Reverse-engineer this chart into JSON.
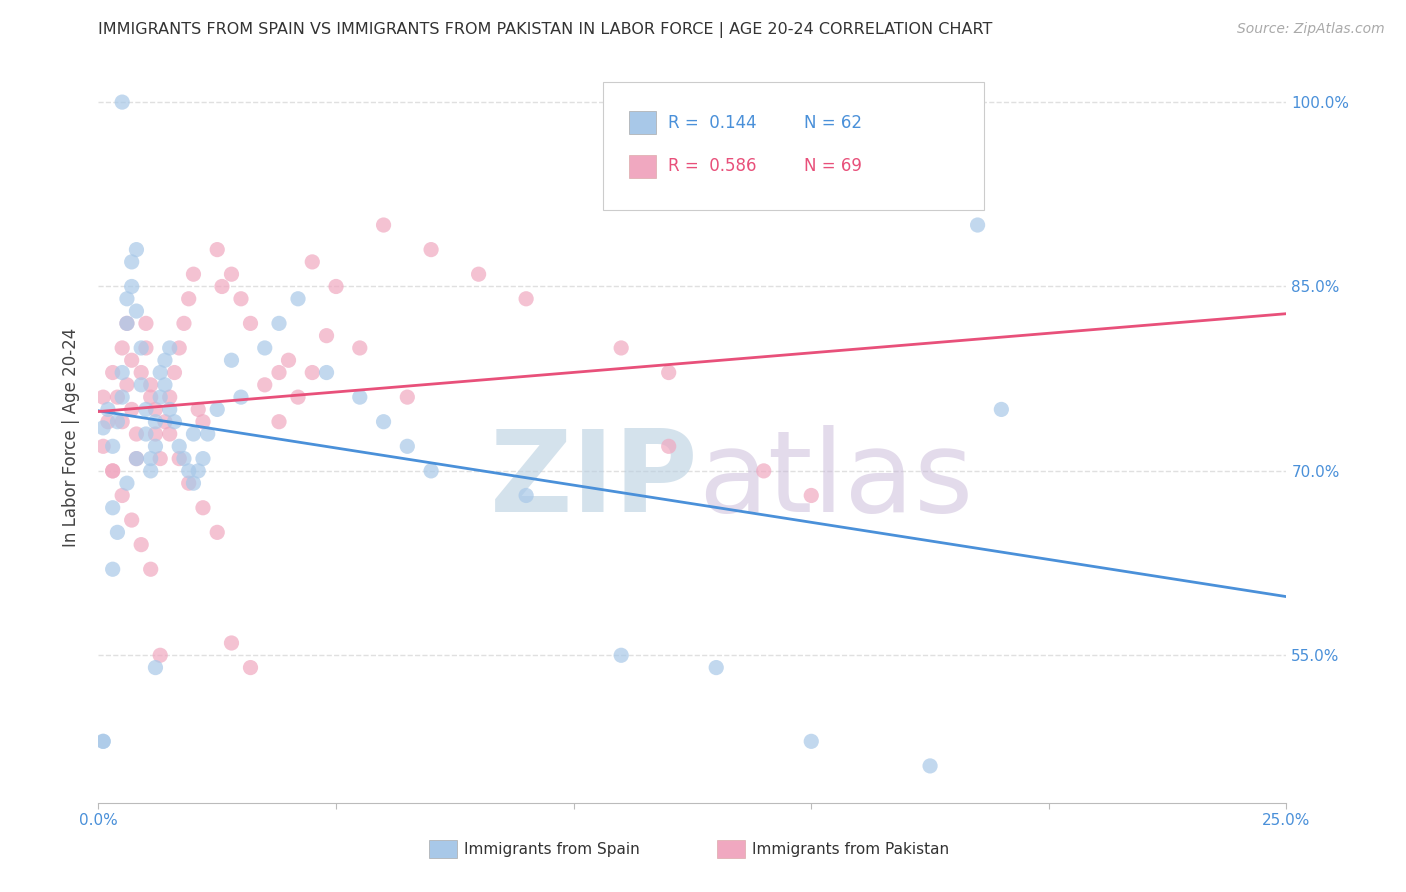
{
  "title": "IMMIGRANTS FROM SPAIN VS IMMIGRANTS FROM PAKISTAN IN LABOR FORCE | AGE 20-24 CORRELATION CHART",
  "source": "Source: ZipAtlas.com",
  "ylabel": "In Labor Force | Age 20-24",
  "x_min": 0.0,
  "x_max": 0.25,
  "y_min": 0.43,
  "y_max": 1.025,
  "y_ticks": [
    0.55,
    0.7,
    0.85,
    1.0
  ],
  "y_tick_labels": [
    "55.0%",
    "70.0%",
    "85.0%",
    "100.0%"
  ],
  "x_ticks": [
    0.0,
    0.05,
    0.1,
    0.15,
    0.2,
    0.25
  ],
  "x_tick_labels": [
    "0.0%",
    "",
    "",
    "",
    "",
    "25.0%"
  ],
  "legend_spain": "Immigrants from Spain",
  "legend_pakistan": "Immigrants from Pakistan",
  "r_spain": "0.144",
  "n_spain": "62",
  "r_pakistan": "0.586",
  "n_pakistan": "69",
  "color_spain": "#a8c8e8",
  "color_pakistan": "#f0a8c0",
  "line_color_spain": "#4a90d9",
  "line_color_pakistan": "#e8507a",
  "background_color": "#ffffff",
  "grid_color": "#e0e0e0",
  "spain_x": [
    0.001,
    0.001,
    0.002,
    0.003,
    0.003,
    0.004,
    0.004,
    0.005,
    0.005,
    0.005,
    0.006,
    0.006,
    0.007,
    0.007,
    0.008,
    0.008,
    0.009,
    0.009,
    0.01,
    0.01,
    0.011,
    0.011,
    0.012,
    0.012,
    0.013,
    0.013,
    0.014,
    0.014,
    0.015,
    0.015,
    0.016,
    0.017,
    0.018,
    0.019,
    0.02,
    0.021,
    0.022,
    0.025,
    0.028,
    0.03,
    0.035,
    0.042,
    0.048,
    0.055,
    0.06,
    0.065,
    0.07,
    0.09,
    0.11,
    0.13,
    0.15,
    0.175,
    0.19,
    0.001,
    0.003,
    0.006,
    0.008,
    0.012,
    0.038,
    0.185,
    0.02,
    0.023
  ],
  "spain_y": [
    0.735,
    0.48,
    0.75,
    0.72,
    0.62,
    0.74,
    0.65,
    0.78,
    0.76,
    1.0,
    0.82,
    0.84,
    0.85,
    0.87,
    0.88,
    0.83,
    0.8,
    0.77,
    0.75,
    0.73,
    0.71,
    0.7,
    0.72,
    0.74,
    0.76,
    0.78,
    0.77,
    0.79,
    0.8,
    0.75,
    0.74,
    0.72,
    0.71,
    0.7,
    0.69,
    0.7,
    0.71,
    0.75,
    0.79,
    0.76,
    0.8,
    0.84,
    0.78,
    0.76,
    0.74,
    0.72,
    0.7,
    0.68,
    0.55,
    0.54,
    0.48,
    0.46,
    0.75,
    0.48,
    0.67,
    0.69,
    0.71,
    0.54,
    0.82,
    0.9,
    0.73,
    0.73
  ],
  "pakistan_x": [
    0.001,
    0.001,
    0.002,
    0.003,
    0.003,
    0.004,
    0.005,
    0.005,
    0.006,
    0.006,
    0.007,
    0.007,
    0.008,
    0.008,
    0.009,
    0.01,
    0.01,
    0.011,
    0.011,
    0.012,
    0.012,
    0.013,
    0.014,
    0.015,
    0.016,
    0.017,
    0.018,
    0.019,
    0.02,
    0.021,
    0.022,
    0.025,
    0.026,
    0.028,
    0.03,
    0.032,
    0.038,
    0.042,
    0.045,
    0.05,
    0.06,
    0.07,
    0.08,
    0.09,
    0.11,
    0.12,
    0.003,
    0.005,
    0.007,
    0.009,
    0.011,
    0.013,
    0.015,
    0.017,
    0.019,
    0.022,
    0.025,
    0.028,
    0.032,
    0.038,
    0.045,
    0.055,
    0.065,
    0.035,
    0.04,
    0.048,
    0.12,
    0.14,
    0.15
  ],
  "pakistan_y": [
    0.76,
    0.72,
    0.74,
    0.78,
    0.7,
    0.76,
    0.74,
    0.8,
    0.82,
    0.77,
    0.79,
    0.75,
    0.73,
    0.71,
    0.78,
    0.8,
    0.82,
    0.76,
    0.77,
    0.75,
    0.73,
    0.71,
    0.74,
    0.76,
    0.78,
    0.8,
    0.82,
    0.84,
    0.86,
    0.75,
    0.74,
    0.88,
    0.85,
    0.86,
    0.84,
    0.82,
    0.78,
    0.76,
    0.87,
    0.85,
    0.9,
    0.88,
    0.86,
    0.84,
    0.8,
    0.78,
    0.7,
    0.68,
    0.66,
    0.64,
    0.62,
    0.55,
    0.73,
    0.71,
    0.69,
    0.67,
    0.65,
    0.56,
    0.54,
    0.74,
    0.78,
    0.8,
    0.76,
    0.77,
    0.79,
    0.81,
    0.72,
    0.7,
    0.68
  ]
}
